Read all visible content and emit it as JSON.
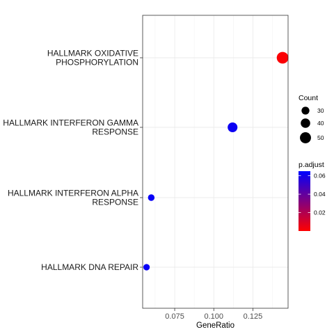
{
  "chart_data": {
    "type": "scatter",
    "xlabel": "GeneRatio",
    "ylabel": "",
    "xlim": [
      0.0545,
      0.1475
    ],
    "x_ticks": [
      0.075,
      0.1,
      0.125
    ],
    "x_tick_labels": [
      "0.075",
      "0.100",
      "0.125"
    ],
    "grid": true,
    "categories": [
      {
        "lines": [
          "HALLMARK OXIDATIVE",
          "PHOSPHORYLATION"
        ]
      },
      {
        "lines": [
          "HALLMARK INTERFERON GAMMA",
          "RESPONSE"
        ]
      },
      {
        "lines": [
          "HALLMARK INTERFERON ALPHA",
          "RESPONSE"
        ]
      },
      {
        "lines": [
          "HALLMARK DNA REPAIR"
        ]
      }
    ],
    "points": [
      {
        "category_index": 0,
        "gene_ratio": 0.144,
        "count": 54,
        "p_adjust": 0.001
      },
      {
        "category_index": 1,
        "gene_ratio": 0.112,
        "count": 42,
        "p_adjust": 0.062
      },
      {
        "category_index": 2,
        "gene_ratio": 0.06,
        "count": 22,
        "p_adjust": 0.063
      },
      {
        "category_index": 3,
        "gene_ratio": 0.057,
        "count": 21,
        "p_adjust": 0.063
      }
    ],
    "legend": {
      "placement": "right",
      "count": {
        "title": "Count",
        "values": [
          30,
          40,
          50
        ],
        "labels": [
          "30",
          "40",
          "50"
        ]
      },
      "p_adjust": {
        "title": "p.adjust",
        "range": [
          0.0,
          0.065
        ],
        "breaks": [
          0.06,
          0.04,
          0.02
        ],
        "labels": [
          "0.06",
          "0.04",
          "0.02"
        ],
        "low_color": "#ff0000",
        "high_color": "#0000ff"
      }
    }
  }
}
